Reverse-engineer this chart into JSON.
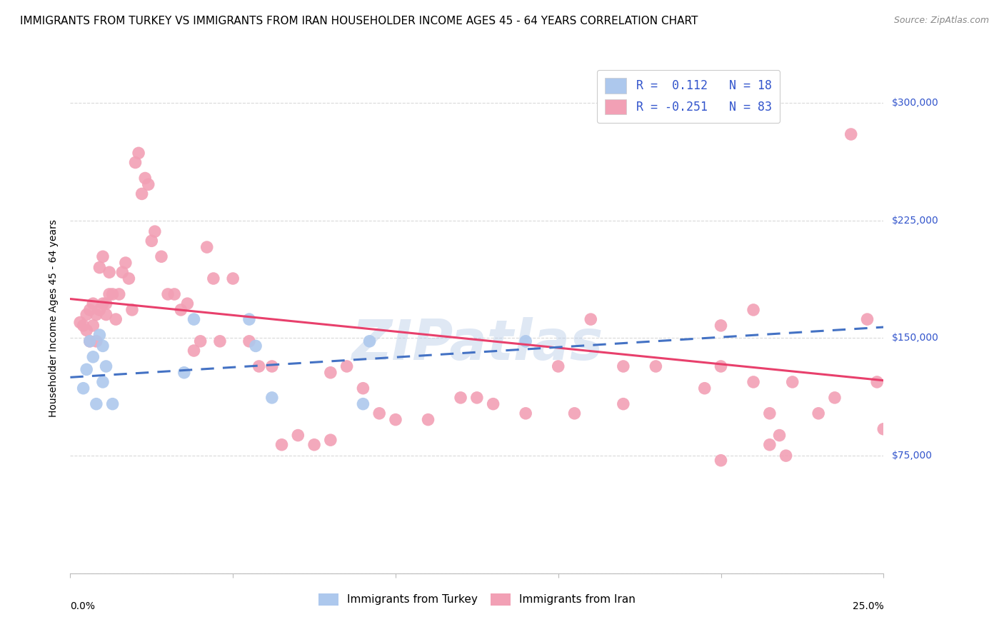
{
  "title": "IMMIGRANTS FROM TURKEY VS IMMIGRANTS FROM IRAN HOUSEHOLDER INCOME AGES 45 - 64 YEARS CORRELATION CHART",
  "source": "Source: ZipAtlas.com",
  "ylabel": "Householder Income Ages 45 - 64 years",
  "xlim": [
    0.0,
    0.25
  ],
  "ylim": [
    0,
    325000
  ],
  "yticks": [
    0,
    75000,
    150000,
    225000,
    300000
  ],
  "ytick_labels": [
    "",
    "$75,000",
    "$150,000",
    "$225,000",
    "$300,000"
  ],
  "xticks": [
    0.0,
    0.05,
    0.1,
    0.15,
    0.2,
    0.25
  ],
  "legend_R_turkey": "0.112",
  "legend_N_turkey": "18",
  "legend_R_iran": "-0.251",
  "legend_N_iran": "83",
  "turkey_color": "#adc8ed",
  "iran_color": "#f2a0b5",
  "turkey_line_color": "#4472c4",
  "iran_line_color": "#e8406c",
  "turkey_line_x0": 0.0,
  "turkey_line_y0": 125000,
  "turkey_line_x1": 0.25,
  "turkey_line_y1": 157000,
  "iran_line_x0": 0.0,
  "iran_line_y0": 175000,
  "iran_line_x1": 0.25,
  "iran_line_y1": 123000,
  "turkey_scatter_x": [
    0.004,
    0.005,
    0.006,
    0.007,
    0.008,
    0.009,
    0.01,
    0.01,
    0.011,
    0.013,
    0.035,
    0.038,
    0.055,
    0.057,
    0.062,
    0.09,
    0.092,
    0.14
  ],
  "turkey_scatter_y": [
    118000,
    130000,
    148000,
    138000,
    108000,
    152000,
    122000,
    145000,
    132000,
    108000,
    128000,
    162000,
    162000,
    145000,
    112000,
    108000,
    148000,
    148000
  ],
  "iran_scatter_x": [
    0.003,
    0.004,
    0.005,
    0.005,
    0.006,
    0.006,
    0.007,
    0.007,
    0.008,
    0.008,
    0.009,
    0.009,
    0.01,
    0.01,
    0.011,
    0.011,
    0.012,
    0.012,
    0.013,
    0.014,
    0.015,
    0.016,
    0.017,
    0.018,
    0.019,
    0.02,
    0.021,
    0.022,
    0.023,
    0.024,
    0.025,
    0.026,
    0.028,
    0.03,
    0.032,
    0.034,
    0.036,
    0.038,
    0.04,
    0.042,
    0.044,
    0.046,
    0.05,
    0.055,
    0.058,
    0.062,
    0.065,
    0.07,
    0.075,
    0.08,
    0.085,
    0.09,
    0.095,
    0.1,
    0.11,
    0.12,
    0.13,
    0.14,
    0.15,
    0.16,
    0.17,
    0.18,
    0.195,
    0.2,
    0.2,
    0.21,
    0.21,
    0.215,
    0.218,
    0.22,
    0.222,
    0.23,
    0.235,
    0.24,
    0.245,
    0.248,
    0.25,
    0.2,
    0.215,
    0.17,
    0.155,
    0.125,
    0.08
  ],
  "iran_scatter_y": [
    160000,
    158000,
    165000,
    155000,
    168000,
    148000,
    172000,
    158000,
    165000,
    148000,
    195000,
    168000,
    202000,
    172000,
    172000,
    165000,
    178000,
    192000,
    178000,
    162000,
    178000,
    192000,
    198000,
    188000,
    168000,
    262000,
    268000,
    242000,
    252000,
    248000,
    212000,
    218000,
    202000,
    178000,
    178000,
    168000,
    172000,
    142000,
    148000,
    208000,
    188000,
    148000,
    188000,
    148000,
    132000,
    132000,
    82000,
    88000,
    82000,
    128000,
    132000,
    118000,
    102000,
    98000,
    98000,
    112000,
    108000,
    102000,
    132000,
    162000,
    132000,
    132000,
    118000,
    158000,
    132000,
    122000,
    168000,
    82000,
    88000,
    75000,
    122000,
    102000,
    112000,
    280000,
    162000,
    122000,
    92000,
    72000,
    102000,
    108000,
    102000,
    112000,
    85000
  ],
  "watermark": "ZIPatlas",
  "background_color": "#ffffff",
  "grid_color": "#d0d0d0",
  "title_fontsize": 11,
  "axis_label_fontsize": 10,
  "tick_fontsize": 10,
  "right_tick_color": "#3355cc",
  "source_color": "#888888"
}
